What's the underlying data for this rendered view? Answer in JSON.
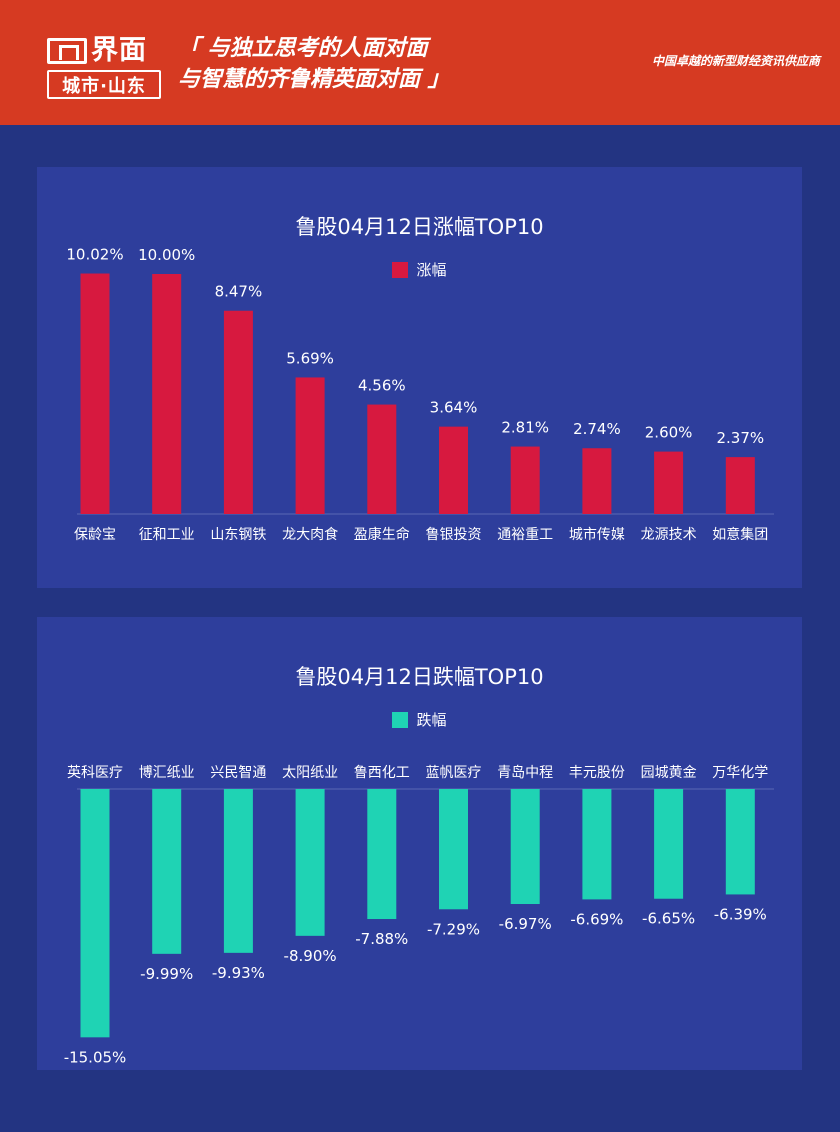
{
  "header": {
    "logo_name": "界面",
    "logo_sub": "城市·山东",
    "slogan_line1": "「 与独立思考的人面对面",
    "slogan_line2": "与智慧的齐鲁精英面对面 」",
    "tagline": "中国卓越的新型财经资讯供应商"
  },
  "colors": {
    "header_bg": "#d63a22",
    "page_bg": "#233482",
    "panel_bg": "#2e3e9c",
    "gain_bar": "#d7193f",
    "loss_bar": "#1fd3b4"
  },
  "chart_data": [
    {
      "type": "bar",
      "title": "鲁股04月12日涨幅TOP10",
      "legend": "涨幅",
      "categories": [
        "保龄宝",
        "征和工业",
        "山东钢铁",
        "龙大肉食",
        "盈康生命",
        "鲁银投资",
        "通裕重工",
        "城市传媒",
        "龙源技术",
        "如意集团"
      ],
      "values": [
        10.02,
        10.0,
        8.47,
        5.69,
        4.56,
        3.64,
        2.81,
        2.74,
        2.6,
        2.37
      ],
      "labels": [
        "10.02%",
        "10.00%",
        "8.47%",
        "5.69%",
        "4.56%",
        "3.64%",
        "2.81%",
        "2.74%",
        "2.60%",
        "2.37%"
      ],
      "legend_placement": "top-center",
      "grid": false
    },
    {
      "type": "bar",
      "title": "鲁股04月12日跌幅TOP10",
      "legend": "跌幅",
      "categories": [
        "英科医疗",
        "博汇纸业",
        "兴民智通",
        "太阳纸业",
        "鲁西化工",
        "蓝帆医疗",
        "青岛中程",
        "丰元股份",
        "园城黄金",
        "万华化学"
      ],
      "values": [
        -15.05,
        -9.99,
        -9.93,
        -8.9,
        -7.88,
        -7.29,
        -6.97,
        -6.69,
        -6.65,
        -6.39
      ],
      "labels": [
        "-15.05%",
        "-9.99%",
        "-9.93%",
        "-8.90%",
        "-7.88%",
        "-7.29%",
        "-6.97%",
        "-6.69%",
        "-6.65%",
        "-6.39%"
      ],
      "legend_placement": "top-center",
      "grid": false
    }
  ]
}
